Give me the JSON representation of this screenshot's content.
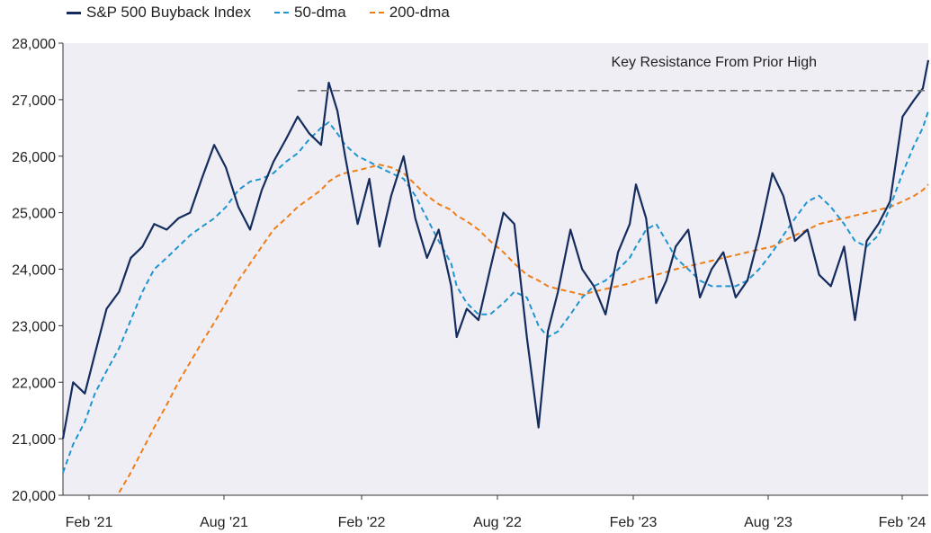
{
  "chart_data": {
    "type": "line",
    "title": "",
    "xlabel": "",
    "ylabel": "",
    "ylim": [
      20000,
      28000
    ],
    "yticks": [
      20000,
      21000,
      22000,
      23000,
      24000,
      25000,
      26000,
      27000,
      28000
    ],
    "ytick_labels": [
      "20,000",
      "21,000",
      "22,000",
      "23,000",
      "24,000",
      "25,000",
      "26,000",
      "27,000",
      "28,000"
    ],
    "xtick_labels": [
      "Feb '21",
      "Aug '21",
      "Feb '22",
      "Aug '22",
      "Feb '23",
      "Aug '23",
      "Feb '24"
    ],
    "x_months_since_start_note": null,
    "x": [
      "2021-01-28",
      "2021-02-10",
      "2021-02-25",
      "2021-03-10",
      "2021-03-25",
      "2021-04-10",
      "2021-04-25",
      "2021-05-10",
      "2021-05-25",
      "2021-06-10",
      "2021-06-25",
      "2021-07-10",
      "2021-07-25",
      "2021-08-10",
      "2021-08-25",
      "2021-09-10",
      "2021-09-25",
      "2021-10-10",
      "2021-10-25",
      "2021-11-10",
      "2021-11-25",
      "2021-12-10",
      "2021-12-25",
      "2022-01-04",
      "2022-01-15",
      "2022-01-25",
      "2022-02-10",
      "2022-02-25",
      "2022-03-10",
      "2022-03-25",
      "2022-04-10",
      "2022-04-25",
      "2022-05-10",
      "2022-05-25",
      "2022-06-10",
      "2022-06-17",
      "2022-06-30",
      "2022-07-15",
      "2022-07-30",
      "2022-08-16",
      "2022-08-30",
      "2022-09-15",
      "2022-09-30",
      "2022-10-12",
      "2022-10-25",
      "2022-11-10",
      "2022-11-25",
      "2022-12-10",
      "2022-12-25",
      "2023-01-10",
      "2023-01-25",
      "2023-02-02",
      "2023-02-15",
      "2023-02-28",
      "2023-03-13",
      "2023-03-25",
      "2023-04-10",
      "2023-04-25",
      "2023-05-10",
      "2023-05-25",
      "2023-06-10",
      "2023-06-25",
      "2023-07-10",
      "2023-07-27",
      "2023-08-10",
      "2023-08-25",
      "2023-09-10",
      "2023-09-25",
      "2023-10-10",
      "2023-10-27",
      "2023-11-10",
      "2023-11-25",
      "2023-12-10",
      "2023-12-25",
      "2024-01-10",
      "2024-01-25",
      "2024-02-05",
      "2024-02-12"
    ],
    "series": [
      {
        "name": "S&P 500 Buyback Index",
        "color": "#142d5e",
        "style": "solid",
        "values": [
          21000,
          22000,
          21800,
          22500,
          23300,
          23600,
          24200,
          24400,
          24800,
          24700,
          24900,
          25000,
          25600,
          26200,
          25800,
          25100,
          24700,
          25400,
          25900,
          26300,
          26700,
          26400,
          26200,
          27300,
          26800,
          26000,
          24800,
          25600,
          24400,
          25300,
          26000,
          24900,
          24200,
          24700,
          23700,
          22800,
          23300,
          23100,
          24000,
          25000,
          24800,
          22800,
          21200,
          22900,
          23600,
          24700,
          24000,
          23700,
          23200,
          24300,
          24800,
          25500,
          24900,
          23400,
          23800,
          24400,
          24700,
          23500,
          24000,
          24300,
          23500,
          23800,
          24600,
          25700,
          25300,
          24500,
          24700,
          23900,
          23700,
          24400,
          23100,
          24500,
          24800,
          25200,
          26700,
          27000,
          27200,
          27700
        ]
      },
      {
        "name": "50-dma",
        "color": "#1f95d0",
        "style": "dashed",
        "values": [
          20400,
          20900,
          21300,
          21800,
          22200,
          22600,
          23100,
          23600,
          24000,
          24200,
          24400,
          24600,
          24750,
          24900,
          25100,
          25400,
          25550,
          25600,
          25700,
          25900,
          26050,
          26300,
          26500,
          26600,
          26400,
          26200,
          26000,
          25900,
          25800,
          25700,
          25600,
          25300,
          24900,
          24500,
          24100,
          23700,
          23400,
          23200,
          23200,
          23400,
          23600,
          23500,
          23000,
          22800,
          22900,
          23200,
          23500,
          23700,
          23800,
          24000,
          24200,
          24400,
          24700,
          24800,
          24500,
          24200,
          24000,
          23800,
          23700,
          23700,
          23700,
          23800,
          24000,
          24300,
          24600,
          24900,
          25200,
          25300,
          25100,
          24800,
          24500,
          24400,
          24600,
          25100,
          25700,
          26200,
          26500,
          26800
        ]
      },
      {
        "name": "200-dma",
        "color": "#ef7d16",
        "style": "dashed",
        "values": [
          null,
          null,
          null,
          null,
          null,
          20050,
          20400,
          20800,
          21200,
          21600,
          22000,
          22350,
          22700,
          23050,
          23400,
          23800,
          24100,
          24400,
          24700,
          24900,
          25100,
          25250,
          25400,
          25550,
          25650,
          25700,
          25750,
          25800,
          25850,
          25800,
          25700,
          25500,
          25300,
          25150,
          25050,
          24950,
          24850,
          24700,
          24500,
          24300,
          24100,
          23900,
          23800,
          23700,
          23650,
          23600,
          23550,
          23600,
          23650,
          23700,
          23750,
          23800,
          23850,
          23900,
          23950,
          24000,
          24050,
          24100,
          24150,
          24200,
          24250,
          24300,
          24350,
          24400,
          24500,
          24600,
          24700,
          24800,
          24850,
          24900,
          24950,
          25000,
          25050,
          25100,
          25200,
          25300,
          25400,
          25500
        ]
      }
    ],
    "annotation": {
      "text": "Key Resistance From Prior High",
      "y": 27160,
      "x_start": "2021-11-25",
      "x_end": "2024-02-12",
      "line_color": "#777777",
      "line_style": "dashed"
    },
    "legend_placement": "top-left",
    "grid": false,
    "plot_background": "#efeef5"
  }
}
